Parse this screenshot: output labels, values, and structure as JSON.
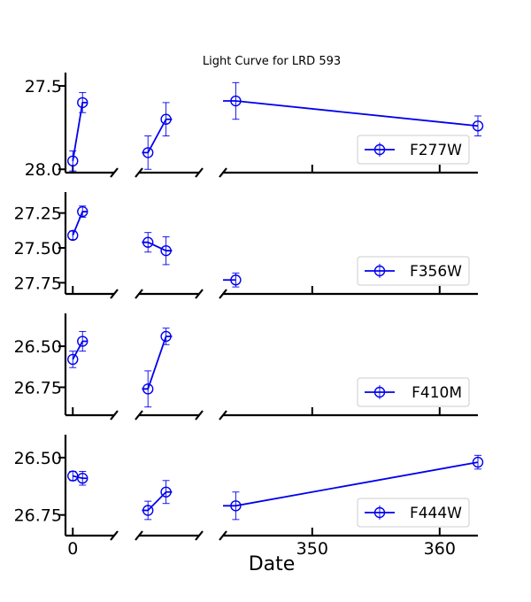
{
  "chart_data": {
    "type": "scatter",
    "title": "Light Curve for LRD 593",
    "xlabel": "Date",
    "ylabel": "",
    "y_inverted": true,
    "x_broken_axis": true,
    "x_segments": [
      {
        "xlim": [
          -1.5,
          8.5
        ],
        "ticks": [
          0
        ],
        "tick_labels": [
          "0"
        ]
      },
      {
        "xlim": [
          -1.5,
          8.5
        ],
        "ticks": [],
        "tick_labels": []
      },
      {
        "xlim": [
          343,
          363
        ],
        "ticks": [
          350,
          360
        ],
        "tick_labels": [
          "350",
          "360"
        ]
      }
    ],
    "panels": [
      {
        "name": "F277W",
        "ylim": [
          27.42,
          28.02
        ],
        "yticks": [
          27.5,
          28.0
        ],
        "ytick_labels": [
          "27.5",
          "28.0"
        ],
        "legend_position": "lower-right",
        "groups": [
          {
            "segment": 0,
            "points": [
              {
                "x": 0,
                "y": 27.95,
                "err": 0.06
              },
              {
                "x": 2,
                "y": 27.6,
                "err": 0.06
              }
            ],
            "ext_end": 3.0
          },
          {
            "segment": 1,
            "points": [
              {
                "x": 0,
                "y": 27.9,
                "err": 0.1
              },
              {
                "x": 3,
                "y": 27.7,
                "err": 0.1
              }
            ],
            "ext_start": -1.0,
            "ext_end": 4.0
          },
          {
            "segment": 2,
            "points": [
              {
                "x": 344,
                "y": 27.59,
                "err": 0.11
              },
              {
                "x": 363,
                "y": 27.74,
                "err": 0.06
              }
            ],
            "ext_start": 343.0
          }
        ]
      },
      {
        "name": "F356W",
        "ylim": [
          27.1,
          27.83
        ],
        "yticks": [
          27.25,
          27.5,
          27.75
        ],
        "ytick_labels": [
          "27.25",
          "27.50",
          "27.75"
        ],
        "legend_position": "lower-right",
        "groups": [
          {
            "segment": 0,
            "points": [
              {
                "x": 0,
                "y": 27.41,
                "err": 0.03
              },
              {
                "x": 2,
                "y": 27.24,
                "err": 0.04
              }
            ],
            "ext_end": 3.0
          },
          {
            "segment": 1,
            "points": [
              {
                "x": 0,
                "y": 27.46,
                "err": 0.07
              },
              {
                "x": 3,
                "y": 27.52,
                "err": 0.1
              }
            ],
            "ext_start": -1.0,
            "ext_end": 4.0
          },
          {
            "segment": 2,
            "points": [
              {
                "x": 344,
                "y": 27.73,
                "err": 0.05
              }
            ],
            "ext_start": 343.0
          }
        ]
      },
      {
        "name": "F410M",
        "ylim": [
          26.3,
          26.92
        ],
        "yticks": [
          26.5,
          26.75
        ],
        "ytick_labels": [
          "26.50",
          "26.75"
        ],
        "legend_position": "lower-right",
        "groups": [
          {
            "segment": 0,
            "points": [
              {
                "x": 0,
                "y": 26.58,
                "err": 0.05
              },
              {
                "x": 2,
                "y": 26.47,
                "err": 0.06
              }
            ],
            "ext_end": 3.0
          },
          {
            "segment": 1,
            "points": [
              {
                "x": 0,
                "y": 26.76,
                "err": 0.11
              },
              {
                "x": 3,
                "y": 26.44,
                "err": 0.05
              }
            ],
            "ext_start": -1.0,
            "ext_end": 4.0
          }
        ]
      },
      {
        "name": "F444W",
        "ylim": [
          26.4,
          26.84
        ],
        "yticks": [
          26.5,
          26.75
        ],
        "ytick_labels": [
          "26.50",
          "26.75"
        ],
        "legend_position": "lower-right",
        "groups": [
          {
            "segment": 0,
            "points": [
              {
                "x": 0,
                "y": 26.58,
                "err": 0.02
              },
              {
                "x": 2,
                "y": 26.59,
                "err": 0.03
              }
            ],
            "ext_end": 3.0
          },
          {
            "segment": 1,
            "points": [
              {
                "x": 0,
                "y": 26.73,
                "err": 0.04
              },
              {
                "x": 3,
                "y": 26.65,
                "err": 0.05
              }
            ],
            "ext_start": -1.0,
            "ext_end": 4.0
          },
          {
            "segment": 2,
            "points": [
              {
                "x": 344,
                "y": 26.71,
                "err": 0.06
              },
              {
                "x": 363,
                "y": 26.52,
                "err": 0.03
              }
            ],
            "ext_start": 343.0
          }
        ]
      }
    ]
  }
}
